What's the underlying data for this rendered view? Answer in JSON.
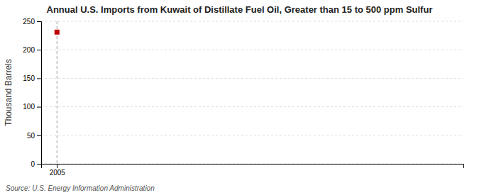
{
  "chart_data": {
    "type": "scatter",
    "title": "Annual U.S. Imports from Kuwait of Distillate Fuel Oil, Greater than 15 to 500 ppm Sulfur",
    "ylabel": "Thousand Barrels",
    "source": "Source: U.S. Energy Information Administration",
    "x": [
      2005
    ],
    "values": [
      231
    ],
    "color": "#c00000",
    "marker": "square",
    "vline": 2005,
    "xlim": [
      2004.3,
      2023
    ],
    "xticks": [
      2005
    ],
    "ylim": [
      0,
      250
    ],
    "yticks": [
      0,
      50,
      100,
      150,
      200,
      250
    ],
    "grid": true
  }
}
